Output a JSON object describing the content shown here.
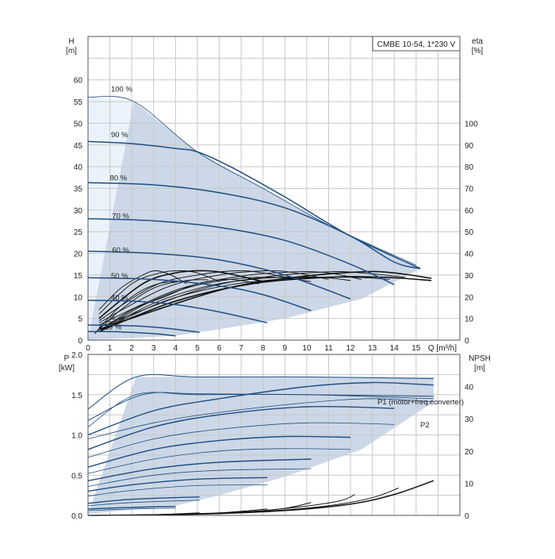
{
  "chart_data": [
    {
      "type": "line",
      "panel": "head",
      "title": "CMBE 10-54, 1*230 V",
      "xlabel": "Q [m³/h]",
      "ylabel": "H",
      "ylabel_unit": "[m]",
      "y2label": "eta",
      "y2label_unit": "[%]",
      "xlim": [
        0,
        17
      ],
      "ylim": [
        0,
        70
      ],
      "y2lim": [
        0,
        140
      ],
      "x_ticks": [
        0,
        1,
        2,
        3,
        4,
        5,
        6,
        7,
        8,
        9,
        10,
        11,
        12,
        13,
        14,
        15
      ],
      "y_ticks": [
        0,
        5,
        10,
        15,
        20,
        25,
        30,
        35,
        40,
        45,
        50,
        55,
        60
      ],
      "y2_ticks": [
        0,
        10,
        20,
        30,
        40,
        50,
        60,
        70,
        80,
        90,
        100
      ],
      "grid": true,
      "head_curves": [
        {
          "label": "100 %",
          "points": [
            [
              0,
              56
            ],
            [
              2.1,
              55
            ],
            [
              5,
              43.4
            ],
            [
              8,
              35
            ],
            [
              11,
              26.5
            ],
            [
              13,
              21.8
            ],
            [
              15,
              17.3
            ]
          ]
        },
        {
          "label": "90 %",
          "points": [
            [
              0,
              45.8
            ],
            [
              2,
              45.3
            ],
            [
              4,
              44.2
            ],
            [
              5,
              43.4
            ],
            [
              6.5,
              40
            ],
            [
              9,
              33
            ],
            [
              12,
              24
            ],
            [
              15.2,
              16.5
            ]
          ]
        },
        {
          "label": "80 %",
          "points": [
            [
              0,
              36.3
            ],
            [
              3,
              35.8
            ],
            [
              6,
              34
            ],
            [
              9,
              30.5
            ],
            [
              12,
              24
            ],
            [
              14,
              18
            ],
            [
              15.2,
              16.5
            ]
          ]
        },
        {
          "label": "70 %",
          "points": [
            [
              0,
              28
            ],
            [
              3,
              27.5
            ],
            [
              6,
              26
            ],
            [
              9,
              23
            ],
            [
              12,
              17.5
            ],
            [
              14,
              12.8
            ]
          ]
        },
        {
          "label": "60 %",
          "points": [
            [
              0,
              20.5
            ],
            [
              3,
              20
            ],
            [
              6,
              18.5
            ],
            [
              9,
              15
            ],
            [
              12,
              9.5
            ]
          ]
        },
        {
          "label": "50 %",
          "points": [
            [
              0,
              14.4
            ],
            [
              3,
              14
            ],
            [
              6,
              12.5
            ],
            [
              8,
              10.5
            ],
            [
              10.2,
              6.8
            ]
          ]
        },
        {
          "label": "40 %",
          "points": [
            [
              0,
              9.2
            ],
            [
              2,
              9
            ],
            [
              4,
              8.2
            ],
            [
              6,
              6.5
            ],
            [
              8.2,
              4
            ]
          ]
        },
        {
          "label": "25 %",
          "points": [
            [
              0,
              3.5
            ],
            [
              2,
              3.3
            ],
            [
              3.5,
              2.8
            ],
            [
              5.1,
              1.8
            ]
          ]
        },
        {
          "label": "19 %",
          "points": [
            [
              0,
              2
            ],
            [
              1.5,
              1.9
            ],
            [
              3,
              1.5
            ],
            [
              4,
              1
            ]
          ]
        }
      ],
      "operating_area_boundary": [
        [
          0,
          0
        ],
        [
          2.1,
          55
        ],
        [
          5,
          43.4
        ],
        [
          8,
          35
        ],
        [
          11,
          26.5
        ],
        [
          13,
          21.8
        ],
        [
          15.2,
          16.5
        ],
        [
          12.5,
          9.5
        ],
        [
          9,
          5
        ],
        [
          6,
          2.5
        ],
        [
          4,
          1
        ],
        [
          0,
          0
        ]
      ],
      "eta_curves": [
        [
          [
            0.5,
            14
          ],
          [
            1.5,
            24
          ],
          [
            2.5,
            30
          ],
          [
            3.1,
            32
          ],
          [
            3.8,
            30
          ],
          [
            4.5,
            26
          ]
        ],
        [
          [
            0.5,
            12
          ],
          [
            2,
            26
          ],
          [
            3.3,
            31
          ],
          [
            4.2,
            32
          ],
          [
            5,
            31
          ],
          [
            6,
            27
          ]
        ],
        [
          [
            0.5,
            10
          ],
          [
            2.5,
            26
          ],
          [
            4,
            31
          ],
          [
            5.4,
            32
          ],
          [
            6.5,
            30.5
          ],
          [
            8,
            27
          ]
        ],
        [
          [
            0.5,
            9
          ],
          [
            3,
            25
          ],
          [
            5,
            30
          ],
          [
            6.8,
            32
          ],
          [
            8,
            31
          ],
          [
            9.5,
            28
          ]
        ],
        [
          [
            0.5,
            8
          ],
          [
            3.5,
            24
          ],
          [
            6,
            30
          ],
          [
            8.2,
            32
          ],
          [
            9.5,
            31
          ],
          [
            11,
            28
          ]
        ],
        [
          [
            0.5,
            7
          ],
          [
            4,
            23
          ],
          [
            7,
            29.5
          ],
          [
            9.5,
            31.5
          ],
          [
            11,
            31
          ],
          [
            12.5,
            28
          ]
        ],
        [
          [
            0.5,
            6
          ],
          [
            5,
            23
          ],
          [
            8,
            29
          ],
          [
            11,
            31.5
          ],
          [
            12.5,
            31
          ],
          [
            14.5,
            29
          ]
        ],
        [
          [
            0.5,
            5
          ],
          [
            6,
            23
          ],
          [
            9.5,
            29
          ],
          [
            12.5,
            31.5
          ],
          [
            14,
            31
          ],
          [
            15.7,
            28.5
          ]
        ],
        [
          [
            0.5,
            4
          ],
          [
            2,
            14
          ],
          [
            3.5,
            20
          ],
          [
            5,
            26
          ],
          [
            6.5,
            28
          ],
          [
            7.8,
            26
          ]
        ],
        [
          [
            0.5,
            4
          ],
          [
            2.5,
            16
          ],
          [
            4.5,
            24
          ],
          [
            6.5,
            28
          ],
          [
            8.5,
            29
          ],
          [
            10.2,
            27
          ]
        ],
        [
          [
            0.5,
            4
          ],
          [
            3,
            17
          ],
          [
            5.5,
            25
          ],
          [
            8,
            28.5
          ],
          [
            10.5,
            29
          ],
          [
            12,
            27.5
          ]
        ],
        [
          [
            0.5,
            4
          ],
          [
            3.5,
            18
          ],
          [
            6.5,
            25.5
          ],
          [
            9.5,
            28.5
          ],
          [
            12,
            29
          ],
          [
            13.8,
            28
          ]
        ],
        [
          [
            0.5,
            4
          ],
          [
            4,
            18
          ],
          [
            7.5,
            26
          ],
          [
            11,
            29
          ],
          [
            13.5,
            29
          ],
          [
            15.7,
            27.5
          ]
        ],
        [
          [
            0.3,
            3
          ],
          [
            1.3,
            14
          ],
          [
            2.3,
            22
          ],
          [
            3.2,
            26
          ],
          [
            4,
            27
          ]
        ],
        [
          [
            0.3,
            3
          ],
          [
            1.5,
            14
          ],
          [
            3,
            24
          ],
          [
            4.5,
            27.5
          ],
          [
            5.5,
            27.8
          ]
        ]
      ],
      "annotations": [
        "100 %",
        "90 %",
        "80 %",
        "70 %",
        "60 %",
        "50 %",
        "40 %",
        "25 %",
        "19 %"
      ]
    },
    {
      "type": "line",
      "panel": "power",
      "xlabel": "",
      "ylabel": "P",
      "ylabel_unit": "[kW]",
      "y2label": "NPSH",
      "y2label_unit": "[m]",
      "xlim": [
        0,
        17
      ],
      "ylim": [
        0,
        2.0
      ],
      "y2lim": [
        0,
        50
      ],
      "y_ticks": [
        "0.0",
        "0.5",
        "1.0",
        "1.5",
        "2.0"
      ],
      "y2_ticks": [
        0,
        10,
        20,
        30,
        40
      ],
      "grid": true,
      "series_labels": [
        "P1 (motor+freq.converter)",
        "P2"
      ],
      "p1_curves": [
        [
          [
            0,
            1.32
          ],
          [
            2.2,
            1.72
          ],
          [
            5,
            1.72
          ],
          [
            10,
            1.72
          ],
          [
            15.8,
            1.7
          ]
        ],
        [
          [
            0,
            1.18
          ],
          [
            2.5,
            1.5
          ],
          [
            5,
            1.51
          ],
          [
            10,
            1.5
          ],
          [
            15.8,
            1.48
          ]
        ],
        [
          [
            0,
            1.0
          ],
          [
            3,
            1.3
          ],
          [
            6,
            1.45
          ],
          [
            10,
            1.6
          ],
          [
            13,
            1.65
          ],
          [
            15.8,
            1.62
          ]
        ],
        [
          [
            0,
            0.82
          ],
          [
            3,
            1.1
          ],
          [
            6,
            1.25
          ],
          [
            10,
            1.35
          ],
          [
            14,
            1.33
          ]
        ],
        [
          [
            0,
            0.6
          ],
          [
            3,
            0.82
          ],
          [
            6,
            0.93
          ],
          [
            9,
            0.98
          ],
          [
            12,
            0.97
          ]
        ],
        [
          [
            0,
            0.43
          ],
          [
            3,
            0.58
          ],
          [
            6,
            0.66
          ],
          [
            10.2,
            0.7
          ]
        ],
        [
          [
            0,
            0.3
          ],
          [
            2,
            0.38
          ],
          [
            5,
            0.45
          ],
          [
            8.2,
            0.47
          ]
        ],
        [
          [
            0,
            0.15
          ],
          [
            2,
            0.2
          ],
          [
            5.1,
            0.23
          ]
        ],
        [
          [
            0,
            0.08
          ],
          [
            2,
            0.1
          ],
          [
            4,
            0.11
          ]
        ]
      ],
      "p2_curves": [
        [
          [
            0,
            1.1
          ],
          [
            2.2,
            1.5
          ],
          [
            5,
            1.5
          ],
          [
            10,
            1.5
          ],
          [
            15.8,
            1.45
          ]
        ],
        [
          [
            0,
            0.95
          ],
          [
            3,
            1.15
          ],
          [
            6,
            1.28
          ],
          [
            10,
            1.4
          ],
          [
            13,
            1.45
          ],
          [
            15.8,
            1.41
          ]
        ],
        [
          [
            0,
            0.72
          ],
          [
            3,
            0.95
          ],
          [
            6,
            1.07
          ],
          [
            10,
            1.15
          ],
          [
            14,
            1.13
          ]
        ],
        [
          [
            0,
            0.52
          ],
          [
            3,
            0.7
          ],
          [
            6,
            0.8
          ],
          [
            9,
            0.83
          ],
          [
            12,
            0.82
          ]
        ],
        [
          [
            0,
            0.36
          ],
          [
            3,
            0.5
          ],
          [
            6,
            0.56
          ],
          [
            10.2,
            0.58
          ]
        ],
        [
          [
            0,
            0.24
          ],
          [
            2,
            0.31
          ],
          [
            5,
            0.37
          ],
          [
            8.2,
            0.38
          ]
        ],
        [
          [
            0,
            0.12
          ],
          [
            2,
            0.16
          ],
          [
            5.1,
            0.19
          ]
        ],
        [
          [
            0,
            0.06
          ],
          [
            2,
            0.08
          ],
          [
            4,
            0.09
          ]
        ]
      ],
      "power_area_boundary": [
        [
          0,
          0.02
        ],
        [
          2.2,
          1.72
        ],
        [
          15.8,
          1.72
        ],
        [
          15.8,
          1.41
        ],
        [
          12.5,
          0.82
        ],
        [
          9,
          0.48
        ],
        [
          6,
          0.25
        ],
        [
          4,
          0.12
        ],
        [
          0,
          0.02
        ]
      ],
      "npsh_curves": [
        [
          [
            0,
            0
          ],
          [
            5,
            0.4
          ],
          [
            9,
            1.5
          ],
          [
            12,
            3.5
          ],
          [
            14,
            6.5
          ],
          [
            15.8,
            10.8
          ]
        ],
        [
          [
            0,
            0
          ],
          [
            5,
            0.4
          ],
          [
            8,
            1.2
          ],
          [
            11,
            3
          ],
          [
            13,
            5.5
          ],
          [
            14.2,
            8.5
          ]
        ],
        [
          [
            0,
            0
          ],
          [
            4,
            0.3
          ],
          [
            7,
            1
          ],
          [
            9.5,
            2.5
          ],
          [
            11.5,
            4.5
          ],
          [
            12.2,
            6.5
          ]
        ],
        [
          [
            0,
            0
          ],
          [
            4,
            0.3
          ],
          [
            7,
            1
          ],
          [
            9,
            2.2
          ],
          [
            10.2,
            4
          ]
        ],
        [
          [
            0,
            0
          ],
          [
            3,
            0.2
          ],
          [
            6,
            0.8
          ],
          [
            8.2,
            2
          ]
        ],
        [
          [
            0,
            0
          ],
          [
            3,
            0.2
          ],
          [
            5.1,
            0.8
          ]
        ]
      ]
    }
  ]
}
